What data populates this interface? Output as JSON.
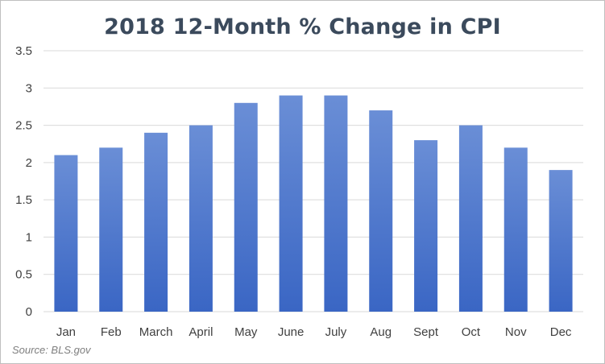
{
  "chart_data": {
    "type": "bar",
    "title": "2018 12-Month % Change in CPI",
    "categories": [
      "Jan",
      "Feb",
      "March",
      "April",
      "May",
      "June",
      "July",
      "Aug",
      "Sept",
      "Oct",
      "Nov",
      "Dec"
    ],
    "values": [
      2.1,
      2.2,
      2.4,
      2.5,
      2.8,
      2.9,
      2.9,
      2.7,
      2.3,
      2.5,
      2.2,
      1.9
    ],
    "ylim": [
      0,
      3.5
    ],
    "yticks": [
      "0",
      "0.5",
      "1",
      "1.5",
      "2",
      "2.5",
      "3",
      "3.5"
    ],
    "xlabel": "",
    "ylabel": "",
    "grid": true,
    "legend": "none",
    "source": "Source: BLS.gov",
    "colors": {
      "bar_top": "#6a8ed6",
      "bar_bottom": "#3a66c4",
      "grid": "#d9d9d9",
      "title": "#3b4a5c"
    }
  }
}
